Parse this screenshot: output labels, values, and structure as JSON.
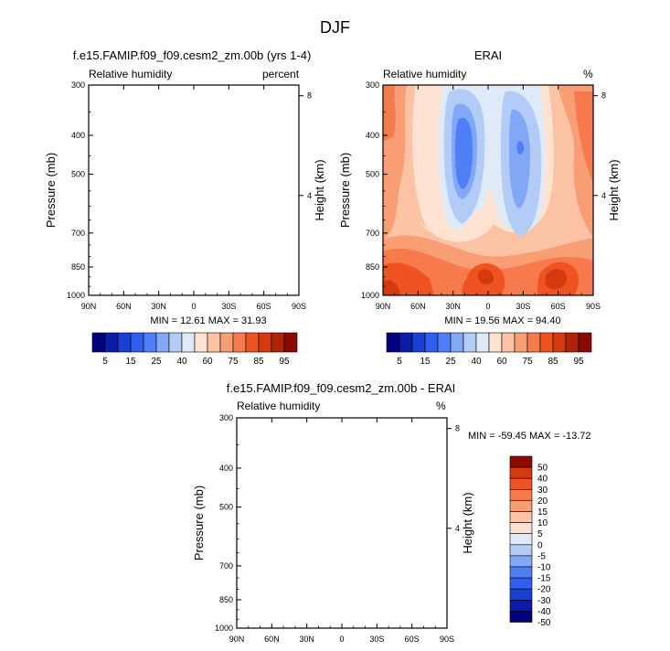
{
  "main_title": "DJF",
  "colors": {
    "rh_levels": [
      "#00007f",
      "#0a1ca8",
      "#1b3fd4",
      "#2f5ef0",
      "#4f7ef7",
      "#82a7f6",
      "#b3ccf7",
      "#dfeaf8",
      "#fde2d2",
      "#fbc2a4",
      "#f99e74",
      "#f77a4c",
      "#ef5322",
      "#d53a0e",
      "#b02306",
      "#8b0a02"
    ],
    "diff_levels": [
      "#00007f",
      "#0a1ca8",
      "#1b3fd4",
      "#2f5ef0",
      "#4f7ef7",
      "#82a7f6",
      "#b3ccf7",
      "#dfeaf8",
      "#fde2d2",
      "#fbc2a4",
      "#f99e74",
      "#f77a4c",
      "#ef5322",
      "#d53a0e",
      "#8b0a02"
    ]
  },
  "chart_data": [
    {
      "type": "heatmap",
      "title": "f.e15.FAMIP.f09_f09.cesm2_zm.00b (yrs 1-4)",
      "left_label": "Relative humidity",
      "right_label": "percent",
      "ylabel": "Pressure (mb)",
      "ylabel_right": "Height (km)",
      "x_ticks": [
        "90N",
        "60N",
        "30N",
        "0",
        "30S",
        "60S",
        "90S"
      ],
      "y_ticks": [
        "300",
        "400",
        "500",
        "700",
        "850",
        "1000"
      ],
      "y_right_ticks": [
        "8",
        "4"
      ],
      "ylim": [
        1000,
        300
      ],
      "min_max": "MIN =  12.61   MAX =  31.93",
      "colorbar_labels": [
        "5",
        "15",
        "25",
        "40",
        "60",
        "75",
        "85",
        "95"
      ],
      "field": "blank"
    },
    {
      "type": "heatmap",
      "title": "ERAI",
      "left_label": "Relative humidity",
      "right_label": "%",
      "ylabel": "Pressure (mb)",
      "ylabel_right": "Height (km)",
      "x_ticks": [
        "90N",
        "60N",
        "30N",
        "0",
        "30S",
        "60S",
        "90S"
      ],
      "y_ticks": [
        "300",
        "400",
        "500",
        "700",
        "850",
        "1000"
      ],
      "y_right_ticks": [
        "8",
        "4"
      ],
      "ylim": [
        1000,
        300
      ],
      "min_max": "MIN =  19.56   MAX =  94.40",
      "colorbar_labels": [
        "5",
        "15",
        "25",
        "40",
        "60",
        "75",
        "85",
        "95"
      ],
      "field": "filled contours"
    },
    {
      "type": "heatmap",
      "title": "f.e15.FAMIP.f09_f09.cesm2_zm.00b - ERAI",
      "left_label": "Relative humidity",
      "right_label": "%",
      "ylabel": "Pressure (mb)",
      "ylabel_right": "Height (km)",
      "x_ticks": [
        "90N",
        "60N",
        "30N",
        "0",
        "30S",
        "60S",
        "90S"
      ],
      "y_ticks": [
        "300",
        "400",
        "500",
        "700",
        "850",
        "1000"
      ],
      "y_right_ticks": [
        "8",
        "4"
      ],
      "ylim": [
        1000,
        300
      ],
      "min_max": "MIN = -59.45   MAX = -13.72",
      "colorbar_labels": [
        "50",
        "40",
        "30",
        "20",
        "15",
        "10",
        "5",
        "0",
        "-5",
        "-10",
        "-15",
        "-20",
        "-30",
        "-40",
        "-50"
      ],
      "field": "blank"
    }
  ]
}
